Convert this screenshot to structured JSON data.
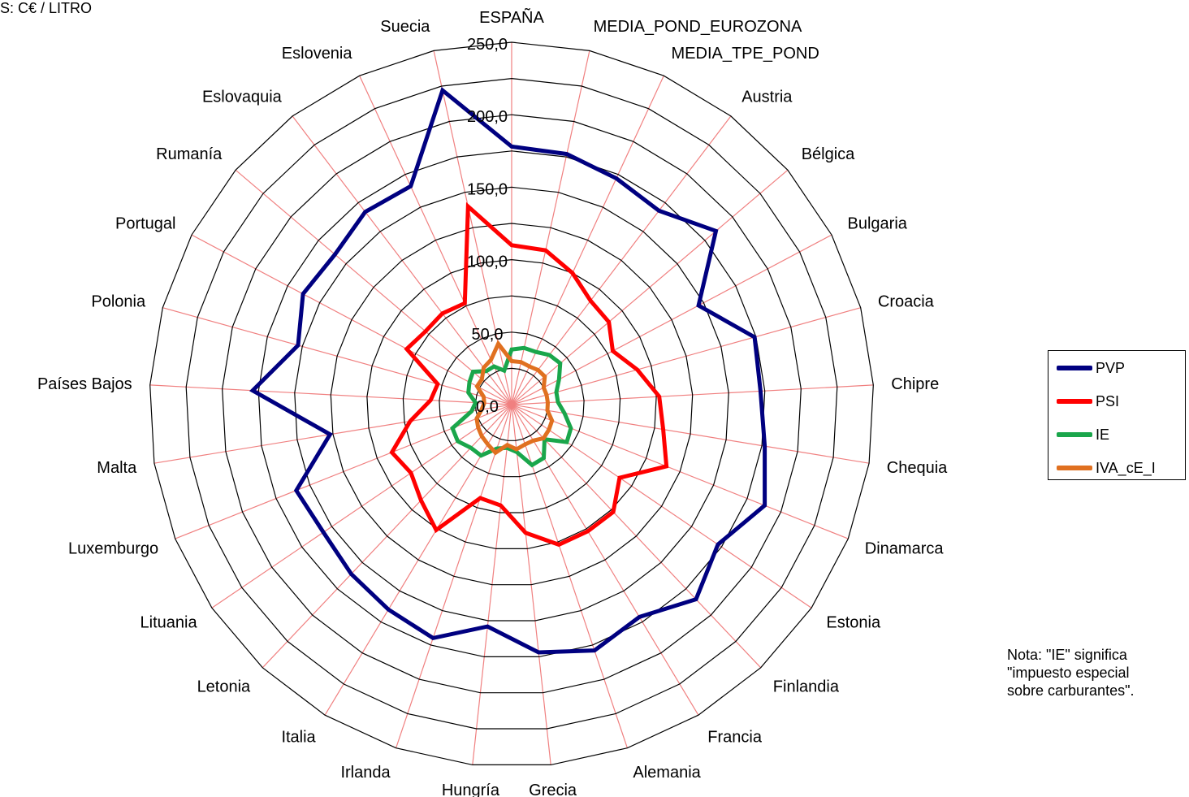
{
  "units_label": "S:  C€ / LITRO",
  "note": {
    "lines": [
      "Nota:  \"IE\" significa",
      "\"impuesto especial",
      "sobre carburantes\"."
    ]
  },
  "legend": [
    {
      "name": "PVP",
      "color": "#000080"
    },
    {
      "name": "PSI",
      "color": "#ff0000"
    },
    {
      "name": "IE",
      "color": "#1aa64b"
    },
    {
      "name": "IVA_cE_I",
      "color": "#e07020"
    }
  ],
  "chart_data": {
    "type": "radar",
    "rlim": [
      0,
      250
    ],
    "rticks": [
      "0,0",
      "50,0",
      "100,0",
      "150,0",
      "200,0",
      "250,0"
    ],
    "categories": [
      "ESPAÑA",
      "MEDIA_POND_EUROZONA",
      "MEDIA_TPE_POND",
      "Austria",
      "Bélgica",
      "Bulgaria",
      "Croacia",
      "Chipre",
      "Chequia",
      "Dinamarca",
      "Estonia",
      "Finlandia",
      "Francia",
      "Alemania",
      "Grecia",
      "Hungría",
      "Irlanda",
      "Italia",
      "Letonia",
      "Lituania",
      "Luxemburgo",
      "Malta",
      "Países Bajos",
      "Polonia",
      "Portugal",
      "Rumanía",
      "Eslovaquia",
      "Eslovenia",
      "Suecia"
    ],
    "series": [
      {
        "name": "PVP",
        "color": "#000080",
        "values": [
          178,
          177,
          172,
          168,
          185,
          146,
          174,
          172,
          177,
          188,
          172,
          185,
          171,
          179,
          172,
          154,
          170,
          165,
          161,
          157,
          160,
          127,
          179,
          153,
          163,
          160,
          167,
          166,
          222
        ]
      },
      {
        "name": "PSI",
        "color": "#ff0000",
        "values": [
          110,
          109,
          100,
          90,
          88,
          79,
          90,
          102,
          106,
          115,
          90,
          102,
          102,
          102,
          89,
          70,
          68,
          101,
          91,
          84,
          89,
          71,
          56,
          53,
          82,
          78,
          79,
          77,
          140
        ]
      },
      {
        "name": "IE",
        "color": "#1aa64b",
        "values": [
          38,
          40,
          40,
          43,
          44,
          37,
          32,
          32,
          37,
          44,
          46,
          33,
          43,
          44,
          33,
          30,
          32,
          41,
          41,
          45,
          44,
          28,
          25,
          31,
          33,
          35,
          29,
          29,
          24
        ]
      },
      {
        "name": "IVA_cE_I",
        "color": "#e07020",
        "values": [
          30,
          30,
          29,
          30,
          30,
          25,
          25,
          25,
          25,
          30,
          31,
          32,
          29,
          29,
          31,
          28,
          35,
          32,
          30,
          28,
          26,
          21,
          19,
          20,
          27,
          27,
          32,
          34,
          43
        ]
      }
    ],
    "grid": true
  }
}
